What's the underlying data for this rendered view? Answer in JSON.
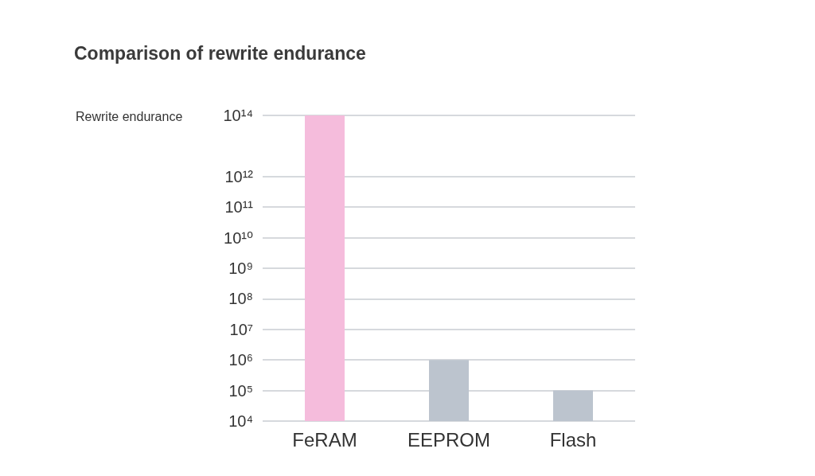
{
  "chart_data": {
    "type": "bar",
    "title": "Comparison of rewrite endurance",
    "ylabel": "Rewrite endurance",
    "categories": [
      "FeRAM",
      "EEPROM",
      "Flash"
    ],
    "values": [
      100000000000000,
      1000000,
      100000
    ],
    "colors": [
      "#f5bcdc",
      "#bcc4ce",
      "#bcc4ce"
    ],
    "log": true,
    "ylim": [
      10000,
      100000000000000
    ],
    "yticks": [
      {
        "value": 10000,
        "label": "10⁴"
      },
      {
        "value": 100000,
        "label": "10⁵"
      },
      {
        "value": 1000000,
        "label": "10⁶"
      },
      {
        "value": 10000000,
        "label": "10⁷"
      },
      {
        "value": 100000000,
        "label": "10⁸"
      },
      {
        "value": 1000000000,
        "label": "10⁹"
      },
      {
        "value": 10000000000,
        "label": "10¹⁰"
      },
      {
        "value": 100000000000,
        "label": "10¹¹"
      },
      {
        "value": 1000000000000,
        "label": "10¹²"
      },
      {
        "value": 100000000000000,
        "label": "10¹⁴"
      }
    ],
    "grid": "y"
  }
}
